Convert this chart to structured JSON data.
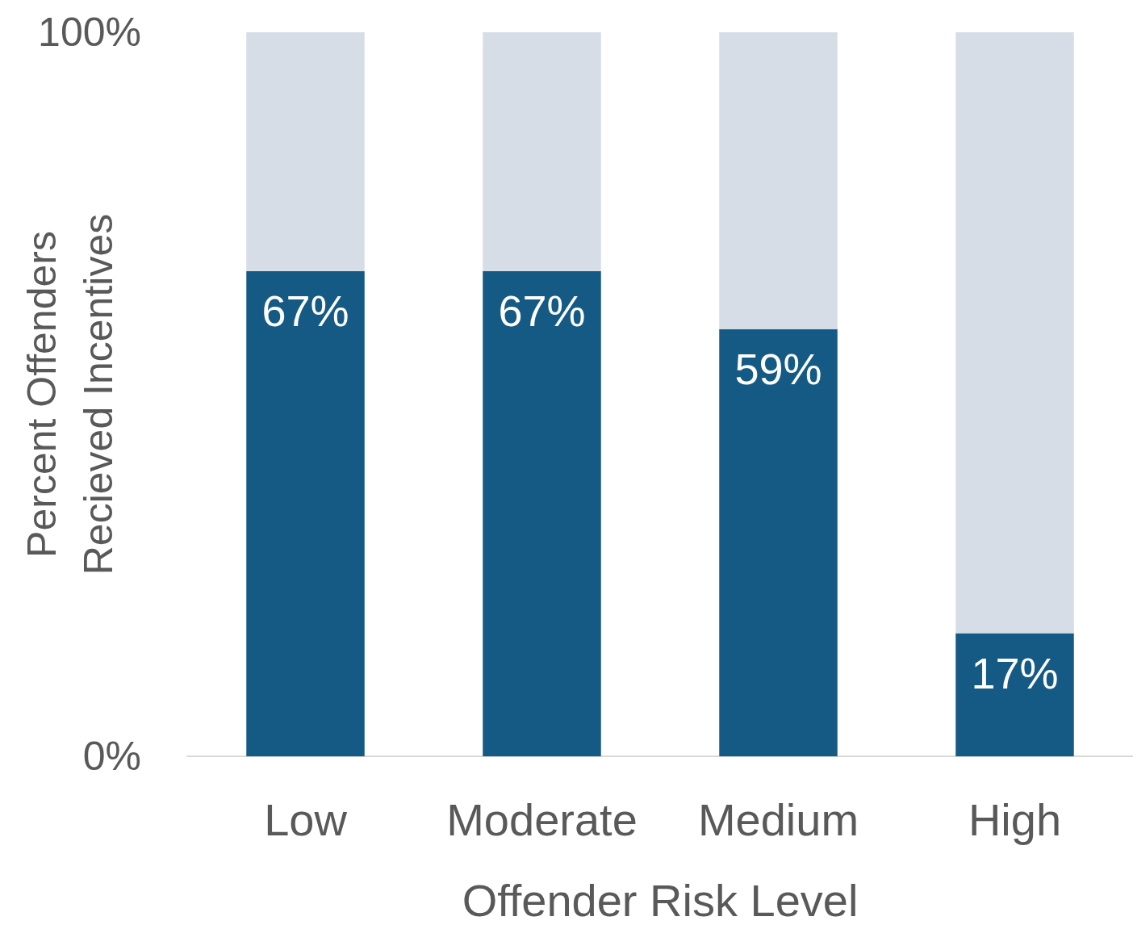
{
  "chart_data": {
    "type": "bar",
    "stacked": true,
    "xlabel": "Offender Risk Level",
    "ylabel": "Percent Offenders\nRecieved Incentives",
    "categories": [
      "Low",
      "Moderate",
      "Medium",
      "High"
    ],
    "series": [
      {
        "color": "#155a84",
        "values": [
          67,
          67,
          59,
          17
        ],
        "value_labels": [
          "67%",
          "67%",
          "59%",
          "17%"
        ]
      },
      {
        "color": "#d6dde6",
        "values": [
          33,
          33,
          41,
          83
        ]
      }
    ],
    "ylim": [
      0,
      100
    ],
    "yticks": [
      {
        "value": 0,
        "label": "0%"
      },
      {
        "value": 100,
        "label": "100%"
      }
    ],
    "grid": false
  }
}
